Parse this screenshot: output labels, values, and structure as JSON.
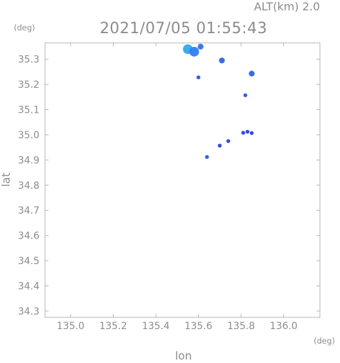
{
  "chart_data": {
    "type": "scatter",
    "title": "2021/07/05 01:55:43",
    "subtitle": "ALT(km) 2.0",
    "xlabel": "lon",
    "ylabel": "lat",
    "x_unit": "(deg)",
    "y_unit": "(deg)",
    "xlim": [
      134.88,
      136.17
    ],
    "ylim": [
      34.275,
      35.365
    ],
    "xticks": [
      135.0,
      135.2,
      135.4,
      135.6,
      135.8,
      136.0
    ],
    "xtick_labels": [
      "135.0",
      "135.2",
      "135.4",
      "135.6",
      "135.8",
      "136.0"
    ],
    "yticks": [
      34.3,
      34.4,
      34.5,
      34.6,
      34.7,
      34.8,
      34.9,
      35.0,
      35.1,
      35.2,
      35.3
    ],
    "ytick_labels": [
      "34.3",
      "34.4",
      "34.5",
      "34.6",
      "34.7",
      "34.8",
      "34.9",
      "35.0",
      "35.1",
      "35.2",
      "35.3"
    ],
    "grid": false,
    "points": [
      {
        "x": 135.55,
        "y": 35.34,
        "intensity": "high",
        "color": "#2fa8ef"
      },
      {
        "x": 135.58,
        "y": 35.33,
        "intensity": "high",
        "color": "#2f7ef0"
      },
      {
        "x": 135.61,
        "y": 35.35,
        "intensity": "medium",
        "color": "#2f6ff0"
      },
      {
        "x": 135.71,
        "y": 35.295,
        "intensity": "medium",
        "color": "#2f63ea"
      },
      {
        "x": 135.6,
        "y": 35.228,
        "intensity": "low",
        "color": "#2c54e0"
      },
      {
        "x": 135.85,
        "y": 35.243,
        "intensity": "medium",
        "color": "#2f63ea"
      },
      {
        "x": 135.82,
        "y": 35.157,
        "intensity": "low",
        "color": "#2c54e0"
      },
      {
        "x": 135.81,
        "y": 35.008,
        "intensity": "low",
        "color": "#2c44d8"
      },
      {
        "x": 135.83,
        "y": 35.012,
        "intensity": "low",
        "color": "#2c44d8"
      },
      {
        "x": 135.85,
        "y": 35.007,
        "intensity": "low",
        "color": "#2c44d8"
      },
      {
        "x": 135.7,
        "y": 34.957,
        "intensity": "low",
        "color": "#2c44d8"
      },
      {
        "x": 135.74,
        "y": 34.975,
        "intensity": "low",
        "color": "#2c44d8"
      },
      {
        "x": 135.64,
        "y": 34.912,
        "intensity": "low",
        "color": "#2c54e0"
      }
    ]
  }
}
